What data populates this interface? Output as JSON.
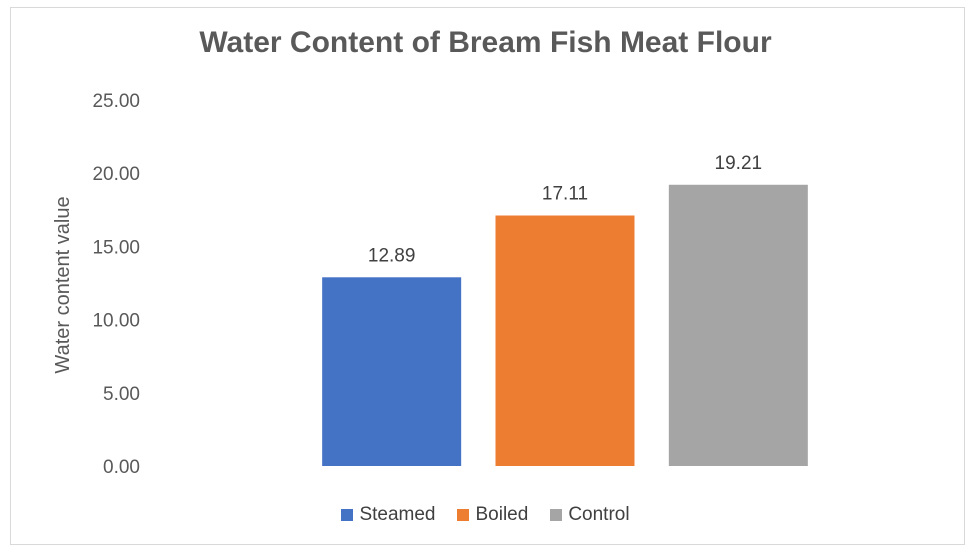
{
  "chart_data": {
    "type": "bar",
    "title": "Water Content of Bream Fish Meat Flour",
    "xlabel": "",
    "ylabel": "Water content value",
    "ylim": [
      0,
      25
    ],
    "ytick_step": 5,
    "ytick_labels": [
      "0.00",
      "5.00",
      "10.00",
      "15.00",
      "20.00",
      "25.00"
    ],
    "grid": false,
    "legend_position": "bottom",
    "categories": [
      "Steamed",
      "Boiled",
      "Control"
    ],
    "values": [
      12.89,
      17.11,
      19.21
    ],
    "data_labels": [
      "12.89",
      "17.11",
      "19.21"
    ],
    "colors": [
      "#4472C4",
      "#ED7D31",
      "#A5A5A5"
    ]
  }
}
